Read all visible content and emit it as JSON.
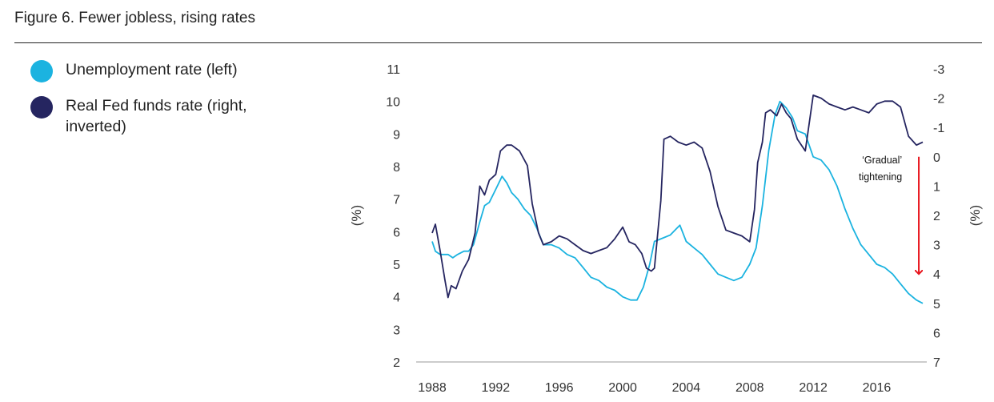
{
  "title": "Figure 6. Fewer jobless, rising rates",
  "legend": [
    {
      "label": "Unemployment rate (left)",
      "color": "#1bb3e0"
    },
    {
      "label": "Real Fed funds rate (right, inverted)",
      "color": "#252560"
    }
  ],
  "chart_data": {
    "type": "line",
    "title": "Figure 6. Fewer jobless, rising rates",
    "xlabel": "",
    "ylabel": "(%)",
    "ylabel_right": "(%)",
    "xlim": [
      1988,
      2019
    ],
    "ylim": [
      2,
      11
    ],
    "ylim_right": [
      7,
      -3
    ],
    "right_axis_inverted": true,
    "grid": false,
    "legend_position": "top-left",
    "x_ticks": [
      "1988",
      "1992",
      "1996",
      "2000",
      "2004",
      "2008",
      "2012",
      "2016"
    ],
    "y_ticks": [
      "11",
      "10",
      "9",
      "8",
      "7",
      "6",
      "5",
      "4",
      "3",
      "2"
    ],
    "y_right_ticks": [
      "-3",
      "-2",
      "-1",
      "0",
      "1",
      "2",
      "3",
      "4",
      "5",
      "6",
      "7"
    ],
    "series": [
      {
        "name": "Unemployment rate (left)",
        "axis": "left",
        "color": "#1bb3e0",
        "points": [
          [
            1988.0,
            5.7
          ],
          [
            1988.2,
            5.4
          ],
          [
            1988.5,
            5.3
          ],
          [
            1988.8,
            5.3
          ],
          [
            1989.0,
            5.3
          ],
          [
            1989.3,
            5.2
          ],
          [
            1989.6,
            5.3
          ],
          [
            1990.0,
            5.4
          ],
          [
            1990.3,
            5.4
          ],
          [
            1990.6,
            5.6
          ],
          [
            1991.0,
            6.3
          ],
          [
            1991.3,
            6.8
          ],
          [
            1991.6,
            6.9
          ],
          [
            1992.0,
            7.3
          ],
          [
            1992.4,
            7.7
          ],
          [
            1992.7,
            7.5
          ],
          [
            1993.0,
            7.2
          ],
          [
            1993.4,
            7.0
          ],
          [
            1993.8,
            6.7
          ],
          [
            1994.2,
            6.5
          ],
          [
            1994.6,
            6.1
          ],
          [
            1995.0,
            5.6
          ],
          [
            1995.5,
            5.6
          ],
          [
            1996.0,
            5.5
          ],
          [
            1996.5,
            5.3
          ],
          [
            1997.0,
            5.2
          ],
          [
            1997.5,
            4.9
          ],
          [
            1998.0,
            4.6
          ],
          [
            1998.5,
            4.5
          ],
          [
            1999.0,
            4.3
          ],
          [
            1999.5,
            4.2
          ],
          [
            2000.0,
            4.0
          ],
          [
            2000.5,
            3.9
          ],
          [
            2000.9,
            3.9
          ],
          [
            2001.3,
            4.3
          ],
          [
            2001.7,
            5.0
          ],
          [
            2002.0,
            5.7
          ],
          [
            2002.5,
            5.8
          ],
          [
            2003.0,
            5.9
          ],
          [
            2003.4,
            6.1
          ],
          [
            2003.6,
            6.2
          ],
          [
            2004.0,
            5.7
          ],
          [
            2004.5,
            5.5
          ],
          [
            2005.0,
            5.3
          ],
          [
            2005.5,
            5.0
          ],
          [
            2006.0,
            4.7
          ],
          [
            2006.5,
            4.6
          ],
          [
            2007.0,
            4.5
          ],
          [
            2007.5,
            4.6
          ],
          [
            2008.0,
            5.0
          ],
          [
            2008.4,
            5.5
          ],
          [
            2008.8,
            6.8
          ],
          [
            2009.2,
            8.5
          ],
          [
            2009.6,
            9.6
          ],
          [
            2009.9,
            10.0
          ],
          [
            2010.3,
            9.8
          ],
          [
            2010.7,
            9.5
          ],
          [
            2011.0,
            9.1
          ],
          [
            2011.5,
            9.0
          ],
          [
            2012.0,
            8.3
          ],
          [
            2012.5,
            8.2
          ],
          [
            2013.0,
            7.9
          ],
          [
            2013.5,
            7.4
          ],
          [
            2014.0,
            6.7
          ],
          [
            2014.5,
            6.1
          ],
          [
            2015.0,
            5.6
          ],
          [
            2015.5,
            5.3
          ],
          [
            2016.0,
            5.0
          ],
          [
            2016.5,
            4.9
          ],
          [
            2017.0,
            4.7
          ],
          [
            2017.5,
            4.4
          ],
          [
            2018.0,
            4.1
          ],
          [
            2018.5,
            3.9
          ],
          [
            2018.9,
            3.8
          ]
        ]
      },
      {
        "name": "Real Fed funds rate (right, inverted)",
        "axis": "right",
        "color": "#252560",
        "points": [
          [
            1988.0,
            2.6
          ],
          [
            1988.2,
            2.3
          ],
          [
            1988.5,
            3.2
          ],
          [
            1988.8,
            4.2
          ],
          [
            1989.0,
            4.8
          ],
          [
            1989.2,
            4.4
          ],
          [
            1989.5,
            4.5
          ],
          [
            1989.9,
            3.9
          ],
          [
            1990.3,
            3.5
          ],
          [
            1990.7,
            2.6
          ],
          [
            1991.0,
            1.0
          ],
          [
            1991.3,
            1.3
          ],
          [
            1991.6,
            0.8
          ],
          [
            1992.0,
            0.6
          ],
          [
            1992.3,
            -0.2
          ],
          [
            1992.7,
            -0.4
          ],
          [
            1993.0,
            -0.4
          ],
          [
            1993.5,
            -0.2
          ],
          [
            1994.0,
            0.3
          ],
          [
            1994.3,
            1.6
          ],
          [
            1994.7,
            2.6
          ],
          [
            1995.0,
            3.0
          ],
          [
            1995.5,
            2.9
          ],
          [
            1996.0,
            2.7
          ],
          [
            1996.5,
            2.8
          ],
          [
            1997.0,
            3.0
          ],
          [
            1997.5,
            3.2
          ],
          [
            1998.0,
            3.3
          ],
          [
            1998.5,
            3.2
          ],
          [
            1999.0,
            3.1
          ],
          [
            1999.5,
            2.8
          ],
          [
            2000.0,
            2.4
          ],
          [
            2000.4,
            2.9
          ],
          [
            2000.8,
            3.0
          ],
          [
            2001.2,
            3.3
          ],
          [
            2001.5,
            3.8
          ],
          [
            2001.8,
            3.9
          ],
          [
            2002.0,
            3.8
          ],
          [
            2002.4,
            1.5
          ],
          [
            2002.6,
            -0.6
          ],
          [
            2003.0,
            -0.7
          ],
          [
            2003.5,
            -0.5
          ],
          [
            2004.0,
            -0.4
          ],
          [
            2004.5,
            -0.5
          ],
          [
            2005.0,
            -0.3
          ],
          [
            2005.5,
            0.5
          ],
          [
            2006.0,
            1.7
          ],
          [
            2006.5,
            2.5
          ],
          [
            2007.0,
            2.6
          ],
          [
            2007.5,
            2.7
          ],
          [
            2008.0,
            2.9
          ],
          [
            2008.3,
            1.8
          ],
          [
            2008.5,
            0.2
          ],
          [
            2008.8,
            -0.5
          ],
          [
            2009.0,
            -1.5
          ],
          [
            2009.3,
            -1.6
          ],
          [
            2009.7,
            -1.4
          ],
          [
            2010.0,
            -1.8
          ],
          [
            2010.3,
            -1.5
          ],
          [
            2010.6,
            -1.3
          ],
          [
            2011.0,
            -0.6
          ],
          [
            2011.5,
            -0.2
          ],
          [
            2012.0,
            -2.1
          ],
          [
            2012.5,
            -2.0
          ],
          [
            2013.0,
            -1.8
          ],
          [
            2013.5,
            -1.7
          ],
          [
            2014.0,
            -1.6
          ],
          [
            2014.5,
            -1.7
          ],
          [
            2015.0,
            -1.6
          ],
          [
            2015.5,
            -1.5
          ],
          [
            2016.0,
            -1.8
          ],
          [
            2016.5,
            -1.9
          ],
          [
            2017.0,
            -1.9
          ],
          [
            2017.5,
            -1.7
          ],
          [
            2018.0,
            -0.7
          ],
          [
            2018.5,
            -0.4
          ],
          [
            2018.9,
            -0.5
          ]
        ]
      }
    ],
    "annotations": [
      {
        "text_lines": [
          "‘Gradual’",
          "tightening"
        ],
        "x": 2017.8,
        "y_right": 0.0,
        "color": "#111111"
      }
    ],
    "arrow": {
      "x": 2018.65,
      "from_y_right": 0.0,
      "to_y_right": 4.0,
      "color": "#e8141c"
    }
  }
}
